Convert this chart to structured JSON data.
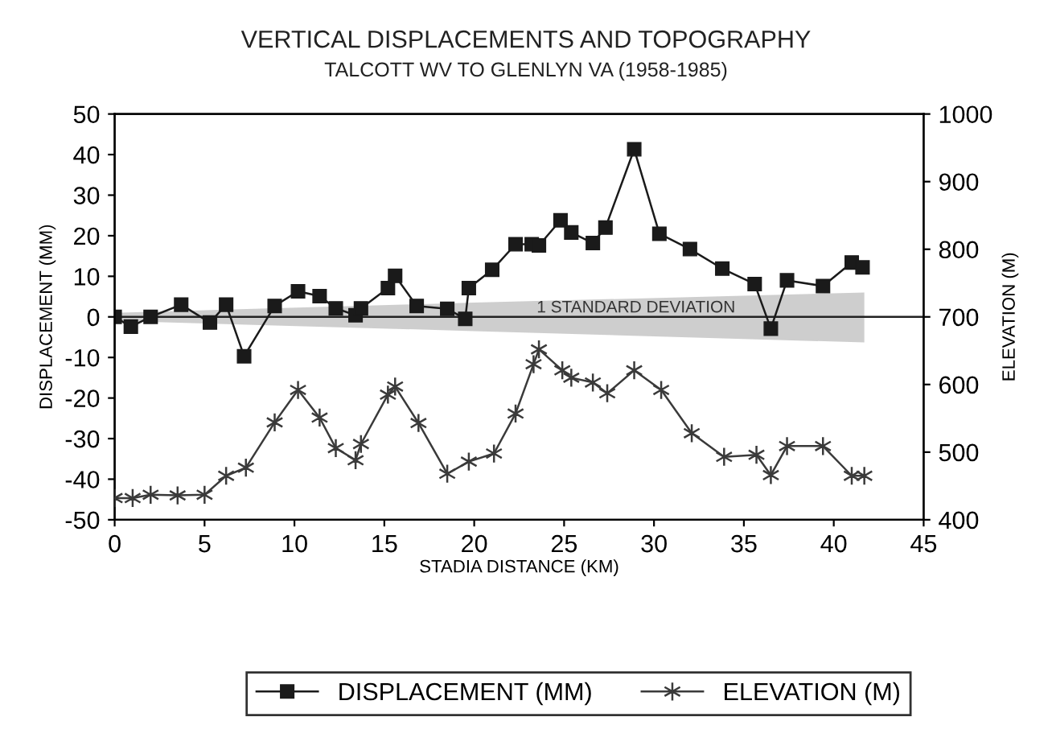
{
  "chart_data": {
    "type": "line",
    "title": "VERTICAL DISPLACEMENTS AND TOPOGRAPHY",
    "subtitle": "TALCOTT WV TO GLENLYN VA (1958-1985)",
    "xlabel": "STADIA DISTANCE (KM)",
    "ylabel": "DISPLACEMENT (MM)",
    "y2label": "ELEVATION (M)",
    "xlim": [
      0,
      45
    ],
    "xticks": [
      0,
      5,
      10,
      15,
      20,
      25,
      30,
      35,
      40,
      45
    ],
    "ylim": [
      -50,
      50
    ],
    "yticks": [
      -50,
      -40,
      -30,
      -20,
      -10,
      0,
      10,
      20,
      30,
      40,
      50
    ],
    "y2lim": [
      400,
      1000
    ],
    "y2ticks": [
      400,
      500,
      600,
      700,
      800,
      900,
      1000
    ],
    "grid": false,
    "legend": "bottom",
    "line_style": "solid",
    "series": [
      {
        "name": "1 STANDARD DEVIATION",
        "type": "line",
        "marker": "none",
        "color": "#222222",
        "x": [
          0,
          20,
          41.7,
          45
        ],
        "values": [
          0,
          0,
          0,
          0
        ],
        "lower": [
          -1,
          -3.5,
          -6.3,
          null
        ],
        "upper": [
          1,
          3.5,
          6,
          null
        ]
      },
      {
        "name": "DISPLACEMENT (MM)",
        "marker": "square",
        "color": "#1a1a1a",
        "x": [
          0,
          0.9,
          2.0,
          3.7,
          5.3,
          6.2,
          7.2,
          8.9,
          10.2,
          11.4,
          12.3,
          13.4,
          13.7,
          15.2,
          15.6,
          16.8,
          18.5,
          19.5,
          19.7,
          21.0,
          22.3,
          23.2,
          23.6,
          24.8,
          25.4,
          26.6,
          27.3,
          28.9,
          30.3,
          32.0,
          33.8,
          35.6,
          36.5,
          37.4,
          39.4,
          41.0,
          41.6
        ],
        "values": [
          0,
          -2.4,
          0,
          3,
          -1.4,
          3,
          -9.7,
          2.7,
          6.3,
          5.1,
          2.1,
          0.4,
          2.1,
          7.1,
          10.1,
          2.7,
          2,
          -0.5,
          7.1,
          11.6,
          17.9,
          17.9,
          17.6,
          23.8,
          20.8,
          18.2,
          22,
          41.3,
          20.5,
          16.7,
          11.9,
          8.1,
          -2.9,
          9,
          7.6,
          13.4,
          12.2
        ]
      },
      {
        "name": "ELEVATION (M)",
        "type": "line",
        "marker": "cross",
        "axis": "y2",
        "color": "#3a3a3a",
        "x": [
          0,
          1,
          2,
          3.5,
          5,
          6.2,
          7.3,
          8.9,
          10.2,
          11.4,
          12.3,
          13.4,
          13.7,
          15.2,
          15.6,
          16.9,
          18.5,
          19.7,
          21.1,
          22.3,
          23.3,
          23.6,
          24.9,
          25.4,
          26.6,
          27.4,
          28.9,
          30.4,
          32.1,
          33.9,
          35.7,
          36.5,
          37.4,
          39.4,
          41.0,
          41.7
        ],
        "values": [
          432,
          432,
          437,
          436,
          437,
          465,
          477,
          544,
          592,
          551,
          506,
          488,
          512,
          585,
          597,
          543,
          468,
          486,
          498,
          557,
          630,
          652,
          621,
          610,
          603,
          587,
          621,
          592,
          528,
          493,
          496,
          466,
          509,
          509,
          465,
          465
        ]
      }
    ]
  }
}
